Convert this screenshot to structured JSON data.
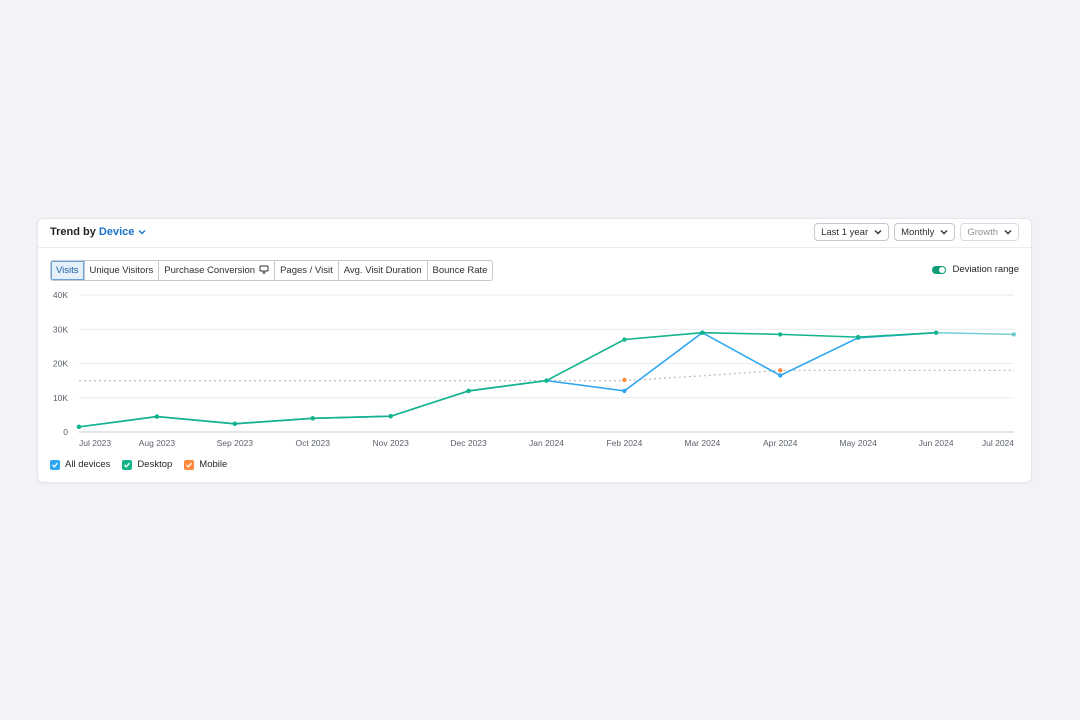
{
  "header": {
    "title_prefix": "Trend by",
    "title_accent": "Device",
    "selects": [
      {
        "label": "Last 1 year",
        "disabled": false
      },
      {
        "label": "Monthly",
        "disabled": false
      },
      {
        "label": "Growth",
        "disabled": true
      }
    ]
  },
  "tabs": [
    {
      "label": "Visits",
      "active": true
    },
    {
      "label": "Unique Visitors",
      "active": false
    },
    {
      "label": "Purchase Conversion",
      "active": false,
      "icon": "monitor-icon"
    },
    {
      "label": "Pages / Visit",
      "active": false
    },
    {
      "label": "Avg. Visit Duration",
      "active": false
    },
    {
      "label": "Bounce Rate",
      "active": false
    }
  ],
  "deviation": {
    "label": "Deviation range",
    "enabled": true
  },
  "legend": [
    {
      "label": "All devices",
      "color": "#2fa7f0",
      "checked": true
    },
    {
      "label": "Desktop",
      "color": "#13b48c",
      "checked": true
    },
    {
      "label": "Mobile",
      "color": "#ff8a3d",
      "checked": true
    }
  ],
  "chart_data": {
    "type": "line",
    "x": [
      "Jul 2023",
      "Aug 2023",
      "Sep 2023",
      "Oct 2023",
      "Nov 2023",
      "Dec 2023",
      "Jan 2024",
      "Feb 2024",
      "Mar 2024",
      "Apr 2024",
      "May 2024",
      "Jun 2024",
      "Jul 2024"
    ],
    "yticks": [
      "0",
      "10K",
      "20K",
      "30K",
      "40K"
    ],
    "ylim": [
      0,
      40000
    ],
    "grid": true,
    "series": [
      {
        "name": "All devices",
        "color": "#2fa7f0",
        "values": [
          1500,
          4500,
          2400,
          4000,
          4600,
          12000,
          15000,
          12000,
          29000,
          16500,
          27500,
          29000,
          28500
        ]
      },
      {
        "name": "Desktop",
        "color": "#13b48c",
        "values": [
          1500,
          4500,
          2400,
          4000,
          4600,
          12000,
          15000,
          27000,
          29000,
          28500,
          27700,
          29000,
          28500
        ]
      },
      {
        "name": "Mobile",
        "color": "#ff8a3d",
        "values": [
          null,
          null,
          null,
          null,
          null,
          null,
          null,
          15200,
          null,
          18000,
          null,
          null,
          null
        ]
      }
    ],
    "trend_line": {
      "color": "#b9bdc4",
      "values": [
        15000,
        15000,
        15000,
        15000,
        15000,
        15000,
        15000,
        15000,
        16400,
        18000,
        18000,
        18000,
        18000
      ]
    },
    "projected_last_point": true
  }
}
